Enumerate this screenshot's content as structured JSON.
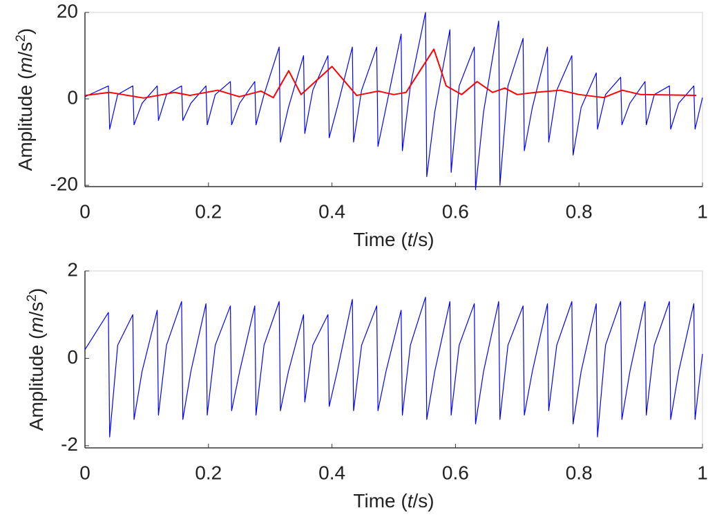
{
  "chart_data": [
    {
      "type": "line",
      "ylabel": [
        "Amplitude  (",
        "m",
        "/s",
        "2",
        ")"
      ],
      "xlabel": [
        "Time  (",
        "t",
        "/s)"
      ],
      "xlim": [
        0,
        1
      ],
      "xticks": [
        0,
        0.2,
        0.4,
        0.6,
        0.8,
        1
      ],
      "ylim": [
        -20.3,
        20
      ],
      "yticks": [
        -20,
        0,
        20
      ],
      "series": [
        {
          "color": "#0000ff",
          "x": [
            0,
            0.038,
            0.04,
            0.053,
            0.0775,
            0.0795,
            0.0925,
            0.117,
            0.119,
            0.132,
            0.1565,
            0.1585,
            0.1715,
            0.196,
            0.198,
            0.211,
            0.2355,
            0.2375,
            0.2505,
            0.275,
            0.277,
            0.29,
            0.3145,
            0.3165,
            0.3295,
            0.354,
            0.356,
            0.369,
            0.3935,
            0.3955,
            0.4085,
            0.433,
            0.435,
            0.448,
            0.4725,
            0.4745,
            0.4875,
            0.512,
            0.514,
            0.527,
            0.5515,
            0.5535,
            0.5665,
            0.591,
            0.593,
            0.606,
            0.6305,
            0.6325,
            0.6455,
            0.67,
            0.672,
            0.685,
            0.7095,
            0.7115,
            0.7245,
            0.749,
            0.751,
            0.764,
            0.7885,
            0.7905,
            0.8035,
            0.828,
            0.83,
            0.843,
            0.8675,
            0.8695,
            0.8825,
            0.907,
            0.909,
            0.922,
            0.9465,
            0.9485,
            0.9615,
            0.986,
            0.988,
            1
          ],
          "values": [
            0.5,
            3,
            -7,
            1,
            3,
            -6,
            -1,
            3,
            -5,
            1,
            3,
            -5,
            -1,
            3,
            -6,
            1,
            4,
            -6,
            -1,
            4,
            -6,
            1,
            12,
            -10,
            -2,
            10,
            -8,
            2,
            10,
            -9,
            -2,
            12,
            -10,
            2,
            12,
            -11,
            -2,
            15,
            -12,
            3,
            20,
            -18,
            -3,
            16,
            -17,
            3,
            12,
            -21,
            -3,
            18,
            -20,
            3,
            14,
            -12,
            -2,
            12,
            -10,
            2,
            10,
            -13,
            -2,
            6,
            -7,
            1,
            5,
            -6,
            -1,
            4,
            -6,
            1,
            3,
            -7,
            -1,
            3,
            -7,
            0.3
          ]
        },
        {
          "color": "#ff0000",
          "x": [
            0,
            0.04,
            0.095,
            0.145,
            0.17,
            0.215,
            0.25,
            0.285,
            0.305,
            0.33,
            0.35,
            0.4,
            0.44,
            0.475,
            0.5,
            0.52,
            0.565,
            0.585,
            0.61,
            0.635,
            0.66,
            0.68,
            0.7,
            0.73,
            0.77,
            0.8,
            0.84,
            0.87,
            0.9,
            0.99
          ],
          "values": [
            0.8,
            1.5,
            0.2,
            1.5,
            0.8,
            2,
            0.5,
            1.8,
            0.3,
            6.5,
            1,
            7.5,
            0.8,
            1.8,
            1,
            1.5,
            11.5,
            3,
            1,
            4,
            1.5,
            2.5,
            1,
            1.5,
            2,
            1,
            0.3,
            2,
            1,
            0.8
          ]
        }
      ]
    },
    {
      "type": "line",
      "ylabel": [
        "Amplitude  (",
        "m",
        "/s",
        "2",
        ")"
      ],
      "xlabel": [
        "Time  (",
        "t",
        "/s)"
      ],
      "xlim": [
        0,
        1
      ],
      "xticks": [
        0,
        0.2,
        0.4,
        0.6,
        0.8,
        1
      ],
      "ylim": [
        -2.05,
        2
      ],
      "yticks": [
        -2,
        0,
        2
      ],
      "series": [
        {
          "color": "#0000ff",
          "x": [
            0,
            0.038,
            0.04,
            0.053,
            0.0775,
            0.0795,
            0.0925,
            0.117,
            0.119,
            0.132,
            0.1565,
            0.1585,
            0.1715,
            0.196,
            0.198,
            0.211,
            0.2355,
            0.2375,
            0.2505,
            0.275,
            0.277,
            0.29,
            0.3145,
            0.3165,
            0.3295,
            0.354,
            0.356,
            0.369,
            0.3935,
            0.3955,
            0.4085,
            0.433,
            0.435,
            0.448,
            0.4725,
            0.4745,
            0.4875,
            0.512,
            0.514,
            0.527,
            0.5515,
            0.5535,
            0.5665,
            0.591,
            0.593,
            0.606,
            0.6305,
            0.6325,
            0.6455,
            0.67,
            0.672,
            0.685,
            0.7095,
            0.7115,
            0.7245,
            0.749,
            0.751,
            0.764,
            0.7885,
            0.7905,
            0.8035,
            0.828,
            0.83,
            0.843,
            0.8675,
            0.8695,
            0.8825,
            0.907,
            0.909,
            0.922,
            0.9465,
            0.9485,
            0.9615,
            0.986,
            0.988,
            1
          ],
          "values": [
            0.2,
            1.05,
            -1.8,
            0.3,
            1,
            -1.4,
            -0.3,
            1.1,
            -1.3,
            0.3,
            1.3,
            -1.4,
            -0.3,
            1.25,
            -1.3,
            0.3,
            1.2,
            -1.2,
            -0.3,
            1.2,
            -1.3,
            0.3,
            1.3,
            -1.2,
            -0.3,
            1,
            -1,
            0.3,
            1,
            -1.1,
            -0.3,
            1.35,
            -1.2,
            0.3,
            1.2,
            -1.2,
            -0.3,
            1.1,
            -1.3,
            0.3,
            1.4,
            -1.4,
            -0.3,
            1.3,
            -1.3,
            0.3,
            1.25,
            -1.5,
            -0.3,
            1.3,
            -1.4,
            0.3,
            1.2,
            -1.3,
            -0.3,
            1.25,
            -1.2,
            0.3,
            1.3,
            -1.5,
            -0.3,
            1.25,
            -1.8,
            0.3,
            1.3,
            -1.4,
            -0.3,
            1.3,
            -1.3,
            0.3,
            1.3,
            -1.4,
            -0.3,
            1.25,
            -1.4,
            0.1
          ]
        }
      ]
    }
  ]
}
